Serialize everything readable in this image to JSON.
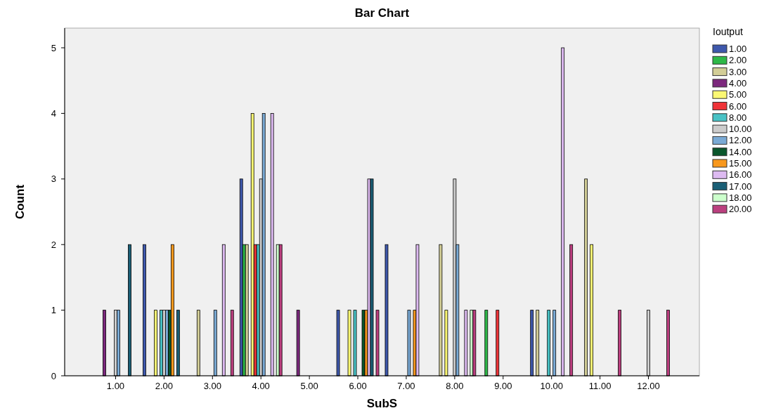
{
  "chart_data": {
    "type": "bar",
    "title": "Bar Chart",
    "xlabel": "SubS",
    "ylabel": "Count",
    "legend_title": "Ioutput",
    "legend": "right",
    "grid": false,
    "categories": [
      "1.00",
      "2.00",
      "3.00",
      "4.00",
      "5.00",
      "6.00",
      "7.00",
      "8.00",
      "9.00",
      "10.00",
      "11.00",
      "12.00"
    ],
    "ylim": [
      0,
      5.3
    ],
    "yticks": [
      0,
      1,
      2,
      3,
      4,
      5
    ],
    "series": [
      {
        "name": "1.00",
        "color": "#3e58ac",
        "values": [
          null,
          2,
          null,
          3,
          null,
          1,
          2,
          null,
          null,
          1,
          null,
          null
        ]
      },
      {
        "name": "2.00",
        "color": "#2eb848",
        "values": [
          null,
          null,
          null,
          2,
          null,
          null,
          null,
          null,
          1,
          null,
          null,
          null
        ]
      },
      {
        "name": "3.00",
        "color": "#d3ce97",
        "values": [
          null,
          null,
          1,
          2,
          null,
          null,
          null,
          2,
          null,
          1,
          3,
          null
        ]
      },
      {
        "name": "4.00",
        "color": "#7c287d",
        "values": [
          1,
          null,
          null,
          null,
          1,
          null,
          null,
          null,
          null,
          null,
          null,
          null
        ]
      },
      {
        "name": "5.00",
        "color": "#fbf873",
        "values": [
          null,
          1,
          null,
          4,
          null,
          1,
          null,
          1,
          null,
          null,
          2,
          null
        ]
      },
      {
        "name": "6.00",
        "color": "#ef3338",
        "values": [
          null,
          null,
          null,
          2,
          null,
          null,
          null,
          null,
          1,
          null,
          null,
          null
        ]
      },
      {
        "name": "8.00",
        "color": "#48c2c5",
        "values": [
          null,
          1,
          null,
          2,
          null,
          1,
          null,
          null,
          null,
          1,
          null,
          null
        ]
      },
      {
        "name": "10.00",
        "color": "#cccccc",
        "values": [
          1,
          1,
          null,
          3,
          null,
          null,
          null,
          3,
          null,
          null,
          null,
          1
        ]
      },
      {
        "name": "12.00",
        "color": "#7aaad5",
        "values": [
          1,
          1,
          1,
          4,
          null,
          null,
          1,
          2,
          null,
          1,
          null,
          null
        ]
      },
      {
        "name": "14.00",
        "color": "#0a562c",
        "values": [
          null,
          1,
          null,
          null,
          null,
          1,
          null,
          null,
          null,
          null,
          null,
          null
        ]
      },
      {
        "name": "15.00",
        "color": "#f8981d",
        "values": [
          null,
          2,
          null,
          null,
          null,
          1,
          1,
          null,
          null,
          null,
          null,
          null
        ]
      },
      {
        "name": "16.00",
        "color": "#ddbaf1",
        "values": [
          null,
          null,
          2,
          4,
          null,
          3,
          2,
          1,
          null,
          5,
          null,
          null
        ]
      },
      {
        "name": "17.00",
        "color": "#1a5f76",
        "values": [
          2,
          1,
          null,
          null,
          null,
          3,
          null,
          null,
          null,
          null,
          null,
          null
        ]
      },
      {
        "name": "18.00",
        "color": "#ccffcc",
        "values": [
          null,
          null,
          null,
          2,
          null,
          null,
          null,
          1,
          null,
          null,
          null,
          null
        ]
      },
      {
        "name": "20.00",
        "color": "#bb3f7f",
        "values": [
          null,
          null,
          1,
          2,
          null,
          1,
          null,
          1,
          null,
          2,
          1,
          1
        ]
      }
    ]
  }
}
